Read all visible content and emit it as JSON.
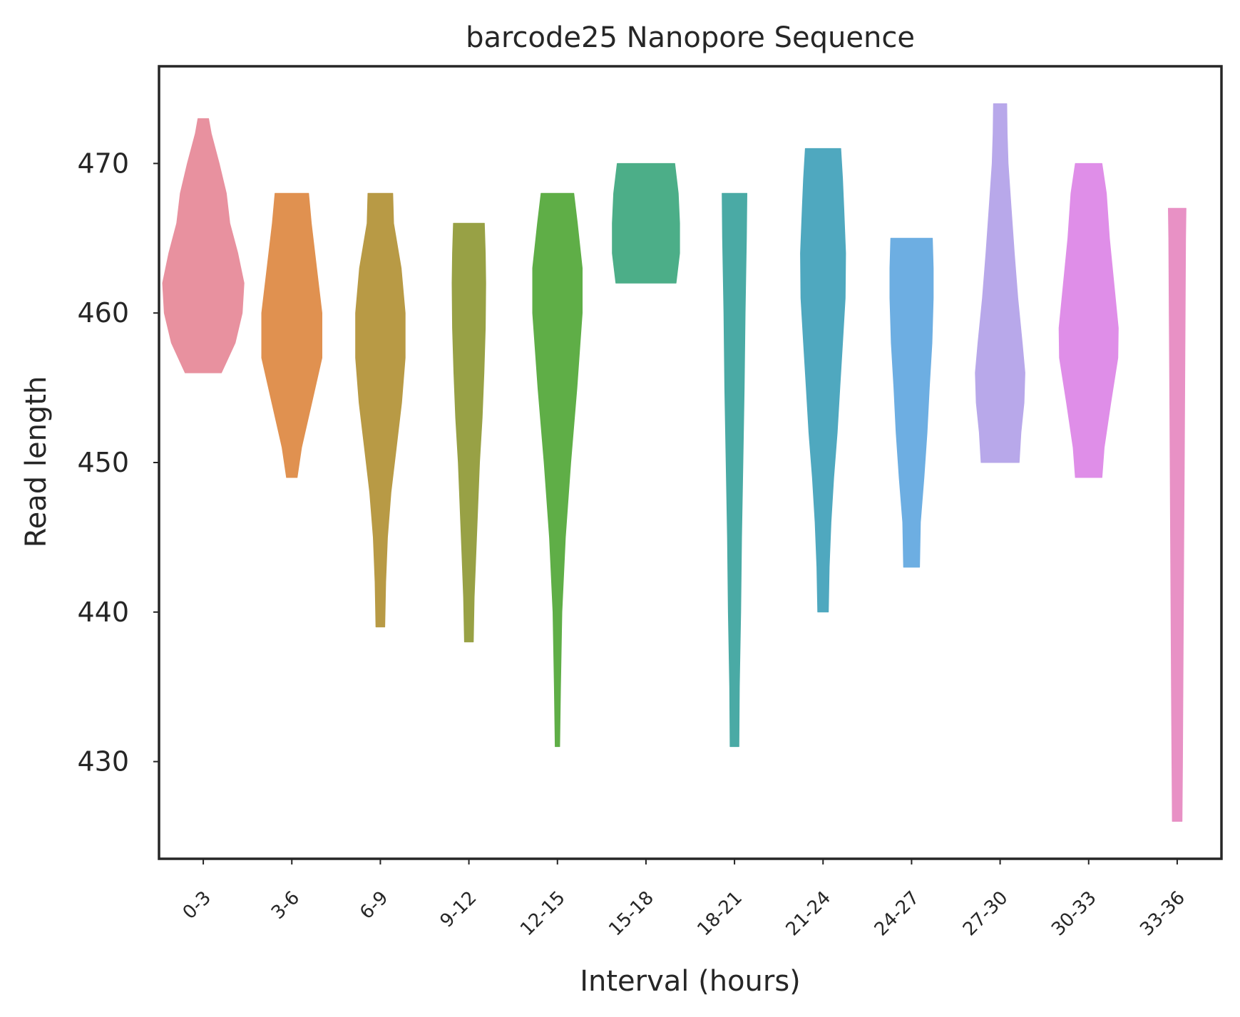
{
  "chart_data": {
    "type": "violin",
    "title": "barcode25 Nanopore Sequence",
    "xlabel": "Interval (hours)",
    "ylabel": "Read length",
    "ylim": [
      423.5,
      476.5
    ],
    "yticks": [
      430,
      440,
      450,
      460,
      470
    ],
    "grid": false,
    "legend": "none",
    "categories": [
      "0-3",
      "3-6",
      "6-9",
      "9-12",
      "12-15",
      "15-18",
      "18-21",
      "21-24",
      "24-27",
      "27-30",
      "30-33",
      "33-36"
    ],
    "series": [
      {
        "category": "0-3",
        "color": "#e8919f",
        "min": 456,
        "max": 473,
        "profile": [
          [
            456,
            0.41
          ],
          [
            458,
            0.72
          ],
          [
            460,
            0.88
          ],
          [
            462,
            0.92
          ],
          [
            464,
            0.78
          ],
          [
            466,
            0.6
          ],
          [
            468,
            0.52
          ],
          [
            470,
            0.36
          ],
          [
            472,
            0.18
          ],
          [
            473,
            0.12
          ]
        ]
      },
      {
        "category": "3-6",
        "color": "#e09150",
        "min": 449,
        "max": 468,
        "profile": [
          [
            449,
            0.12
          ],
          [
            451,
            0.22
          ],
          [
            454,
            0.45
          ],
          [
            457,
            0.68
          ],
          [
            460,
            0.68
          ],
          [
            463,
            0.56
          ],
          [
            466,
            0.44
          ],
          [
            468,
            0.38
          ]
        ]
      },
      {
        "category": "6-9",
        "color": "#b89a45",
        "min": 439,
        "max": 468,
        "profile": [
          [
            439,
            0.1
          ],
          [
            442,
            0.12
          ],
          [
            445,
            0.16
          ],
          [
            448,
            0.24
          ],
          [
            451,
            0.36
          ],
          [
            454,
            0.48
          ],
          [
            457,
            0.56
          ],
          [
            460,
            0.56
          ],
          [
            463,
            0.47
          ],
          [
            466,
            0.3
          ],
          [
            468,
            0.28
          ]
        ]
      },
      {
        "category": "9-12",
        "color": "#98a145",
        "min": 438,
        "max": 466,
        "profile": [
          [
            438,
            0.1
          ],
          [
            441,
            0.12
          ],
          [
            444,
            0.16
          ],
          [
            447,
            0.2
          ],
          [
            450,
            0.24
          ],
          [
            453,
            0.3
          ],
          [
            456,
            0.34
          ],
          [
            459,
            0.37
          ],
          [
            462,
            0.38
          ],
          [
            464,
            0.37
          ],
          [
            466,
            0.35
          ]
        ]
      },
      {
        "category": "12-15",
        "color": "#5fae47",
        "min": 431,
        "max": 468,
        "profile": [
          [
            431,
            0.05
          ],
          [
            435,
            0.07
          ],
          [
            440,
            0.1
          ],
          [
            445,
            0.18
          ],
          [
            450,
            0.3
          ],
          [
            455,
            0.44
          ],
          [
            460,
            0.56
          ],
          [
            463,
            0.56
          ],
          [
            466,
            0.45
          ],
          [
            468,
            0.37
          ]
        ]
      },
      {
        "category": "15-18",
        "color": "#4cae88",
        "min": 462,
        "max": 470,
        "profile": [
          [
            462,
            0.68
          ],
          [
            464,
            0.76
          ],
          [
            466,
            0.76
          ],
          [
            468,
            0.73
          ],
          [
            470,
            0.65
          ]
        ]
      },
      {
        "category": "18-21",
        "color": "#4aaaa5",
        "min": 431,
        "max": 468,
        "profile": [
          [
            431,
            0.1
          ],
          [
            435,
            0.11
          ],
          [
            440,
            0.14
          ],
          [
            445,
            0.16
          ],
          [
            450,
            0.19
          ],
          [
            455,
            0.22
          ],
          [
            460,
            0.24
          ],
          [
            465,
            0.27
          ],
          [
            468,
            0.28
          ]
        ]
      },
      {
        "category": "21-24",
        "color": "#4fa8bf",
        "min": 440,
        "max": 471,
        "profile": [
          [
            440,
            0.12
          ],
          [
            443,
            0.14
          ],
          [
            446,
            0.18
          ],
          [
            449,
            0.24
          ],
          [
            452,
            0.32
          ],
          [
            455,
            0.38
          ],
          [
            458,
            0.44
          ],
          [
            461,
            0.5
          ],
          [
            464,
            0.51
          ],
          [
            467,
            0.47
          ],
          [
            469,
            0.44
          ],
          [
            471,
            0.4
          ]
        ]
      },
      {
        "category": "24-27",
        "color": "#6daee2",
        "min": 443,
        "max": 465,
        "profile": [
          [
            443,
            0.18
          ],
          [
            446,
            0.2
          ],
          [
            449,
            0.28
          ],
          [
            452,
            0.35
          ],
          [
            455,
            0.4
          ],
          [
            458,
            0.46
          ],
          [
            461,
            0.49
          ],
          [
            463,
            0.49
          ],
          [
            465,
            0.47
          ]
        ]
      },
      {
        "category": "27-30",
        "color": "#b8a8ea",
        "min": 450,
        "max": 474,
        "profile": [
          [
            450,
            0.43
          ],
          [
            452,
            0.47
          ],
          [
            454,
            0.54
          ],
          [
            456,
            0.56
          ],
          [
            458,
            0.5
          ],
          [
            461,
            0.4
          ],
          [
            464,
            0.32
          ],
          [
            467,
            0.25
          ],
          [
            470,
            0.18
          ],
          [
            472,
            0.16
          ],
          [
            474,
            0.15
          ]
        ]
      },
      {
        "category": "30-33",
        "color": "#df8ee8",
        "min": 449,
        "max": 470,
        "profile": [
          [
            449,
            0.3
          ],
          [
            451,
            0.35
          ],
          [
            454,
            0.5
          ],
          [
            457,
            0.66
          ],
          [
            459,
            0.67
          ],
          [
            462,
            0.57
          ],
          [
            465,
            0.47
          ],
          [
            468,
            0.4
          ],
          [
            470,
            0.3
          ]
        ]
      },
      {
        "category": "33-36",
        "color": "#e891c5",
        "min": 426,
        "max": 467,
        "profile": [
          [
            426,
            0.11
          ],
          [
            430,
            0.12
          ],
          [
            435,
            0.13
          ],
          [
            440,
            0.14
          ],
          [
            445,
            0.15
          ],
          [
            450,
            0.16
          ],
          [
            455,
            0.17
          ],
          [
            460,
            0.18
          ],
          [
            465,
            0.19
          ],
          [
            467,
            0.2
          ]
        ]
      }
    ]
  }
}
